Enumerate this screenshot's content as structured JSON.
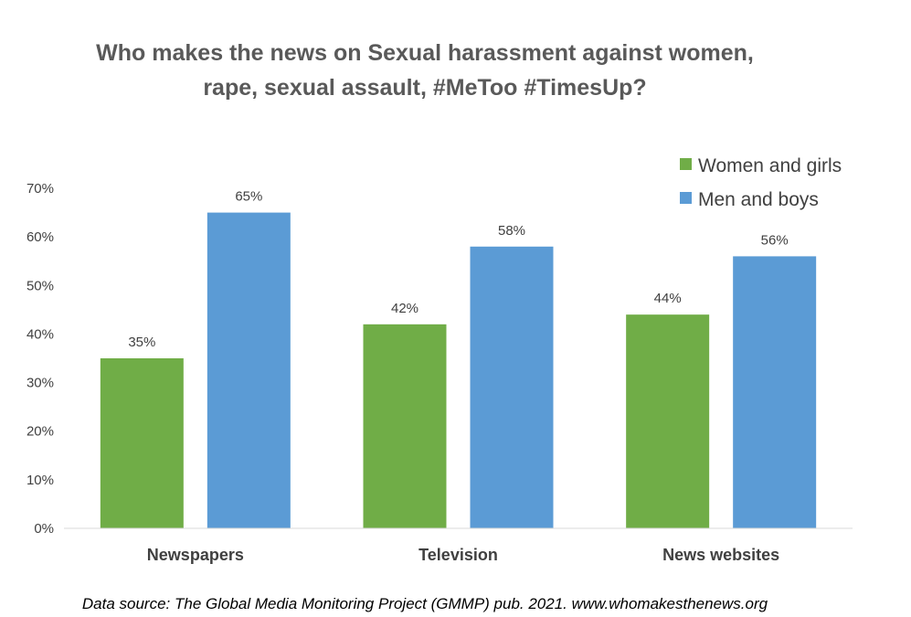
{
  "chart_data": {
    "type": "bar",
    "title_lines": [
      "Who makes the news on Sexual harassment against women,",
      "rape, sexual assault, #MeToo #TimesUp?"
    ],
    "categories": [
      "Newspapers",
      "Television",
      "News websites"
    ],
    "series": [
      {
        "name": "Women and girls",
        "values": [
          35,
          42,
          44
        ],
        "labels": [
          "35%",
          "42%",
          "44%"
        ],
        "color": "#70ad47"
      },
      {
        "name": "Men and boys",
        "values": [
          65,
          58,
          56
        ],
        "labels": [
          "65%",
          "58%",
          "56%"
        ],
        "color": "#5b9bd5"
      }
    ],
    "yticks": [
      "0%",
      "10%",
      "20%",
      "30%",
      "40%",
      "50%",
      "60%",
      "70%"
    ],
    "ylim": [
      0,
      70
    ],
    "ylabel": "",
    "xlabel": "",
    "grid": false,
    "legend_position": "top-right"
  },
  "source_note": "Data source: The Global Media Monitoring Project (GMMP)  pub. 2021. www.whomakesthenews.org"
}
